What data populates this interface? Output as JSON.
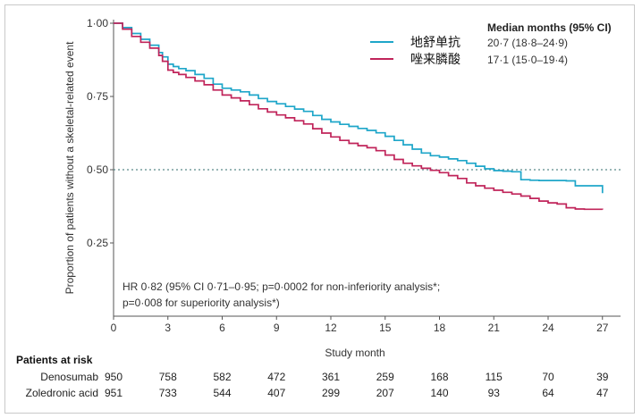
{
  "chart_data": {
    "type": "line",
    "subtype": "kaplan-meier",
    "xlabel": "Study month",
    "ylabel": "Proportion of patients without a skeletal-related event",
    "xlim": [
      0,
      28
    ],
    "ylim": [
      0,
      1.0
    ],
    "x_ticks": [
      0,
      3,
      6,
      9,
      12,
      15,
      18,
      21,
      24,
      27
    ],
    "x_tick_labels": [
      "0",
      "3",
      "6",
      "9",
      "12",
      "15",
      "18",
      "21",
      "24",
      "27"
    ],
    "y_ticks": [
      0.25,
      0.5,
      0.75,
      1.0
    ],
    "y_tick_labels": [
      "0·25",
      "0·50",
      "0·75",
      "1·00"
    ],
    "reference_line": {
      "y": 0.5,
      "style": "dotted"
    },
    "legend": {
      "title": "Median months (95% CI)",
      "placement": "top-right"
    },
    "series": [
      {
        "name": "地舒单抗",
        "median_ci": "20·7 (18·8–24·9)",
        "color": "#1ea6c9",
        "x": [
          0,
          0.5,
          1,
          1.5,
          2,
          2.5,
          2.7,
          3,
          3.3,
          3.6,
          4,
          4.5,
          5,
          5.5,
          6,
          6.5,
          7,
          7.5,
          8,
          8.5,
          9,
          9.5,
          10,
          10.5,
          11,
          11.5,
          12,
          12.5,
          13,
          13.5,
          14,
          14.5,
          15,
          15.5,
          16,
          16.5,
          17,
          17.5,
          18,
          18.5,
          19,
          19.5,
          20,
          20.5,
          21,
          21.5,
          22,
          22.5,
          23,
          23.5,
          24,
          24.5,
          25,
          25.5,
          26,
          26.5,
          27
        ],
        "y": [
          1.0,
          0.985,
          0.965,
          0.945,
          0.925,
          0.9,
          0.885,
          0.86,
          0.852,
          0.845,
          0.838,
          0.825,
          0.812,
          0.792,
          0.778,
          0.772,
          0.766,
          0.755,
          0.743,
          0.733,
          0.725,
          0.716,
          0.707,
          0.699,
          0.685,
          0.672,
          0.663,
          0.655,
          0.648,
          0.641,
          0.634,
          0.626,
          0.614,
          0.6,
          0.585,
          0.57,
          0.557,
          0.548,
          0.543,
          0.537,
          0.531,
          0.522,
          0.512,
          0.503,
          0.497,
          0.495,
          0.493,
          0.466,
          0.464,
          0.463,
          0.463,
          0.463,
          0.462,
          0.445,
          0.445,
          0.445,
          0.42
        ]
      },
      {
        "name": "唑来膦酸",
        "median_ci": "17·1 (15·0–19·4)",
        "color": "#c0245a",
        "x": [
          0,
          0.5,
          1,
          1.5,
          2,
          2.5,
          2.7,
          3,
          3.3,
          3.6,
          4,
          4.5,
          5,
          5.5,
          6,
          6.5,
          7,
          7.5,
          8,
          8.5,
          9,
          9.5,
          10,
          10.5,
          11,
          11.5,
          12,
          12.5,
          13,
          13.5,
          14,
          14.5,
          15,
          15.5,
          16,
          16.5,
          17,
          17.5,
          18,
          18.5,
          19,
          19.5,
          20,
          20.5,
          21,
          21.5,
          22,
          22.5,
          23,
          23.5,
          24,
          24.5,
          25,
          25.5,
          26,
          26.5,
          27
        ],
        "y": [
          1.0,
          0.98,
          0.955,
          0.935,
          0.915,
          0.89,
          0.87,
          0.84,
          0.832,
          0.825,
          0.815,
          0.803,
          0.79,
          0.772,
          0.755,
          0.745,
          0.735,
          0.722,
          0.708,
          0.697,
          0.687,
          0.677,
          0.667,
          0.656,
          0.64,
          0.625,
          0.612,
          0.6,
          0.59,
          0.582,
          0.575,
          0.565,
          0.55,
          0.535,
          0.522,
          0.513,
          0.505,
          0.498,
          0.49,
          0.48,
          0.47,
          0.455,
          0.445,
          0.437,
          0.43,
          0.423,
          0.417,
          0.41,
          0.402,
          0.393,
          0.387,
          0.383,
          0.37,
          0.366,
          0.365,
          0.365,
          0.364
        ]
      }
    ],
    "annotation": {
      "line1": "HR 0·82 (95% CI 0·71–0·95; p=0·0002 for non-inferiority analysis*;",
      "line2": "p=0·008 for superiority analysis*)"
    },
    "risk_table": {
      "header": "Patients at risk",
      "time_points": [
        0,
        3,
        6,
        9,
        12,
        15,
        18,
        21,
        24,
        27
      ],
      "rows": [
        {
          "label": "Denosumab",
          "values": [
            "950",
            "758",
            "582",
            "472",
            "361",
            "259",
            "168",
            "115",
            "70",
            "39"
          ]
        },
        {
          "label": "Zoledronic acid",
          "values": [
            "951",
            "733",
            "544",
            "407",
            "299",
            "207",
            "140",
            "93",
            "64",
            "47"
          ]
        }
      ]
    }
  }
}
